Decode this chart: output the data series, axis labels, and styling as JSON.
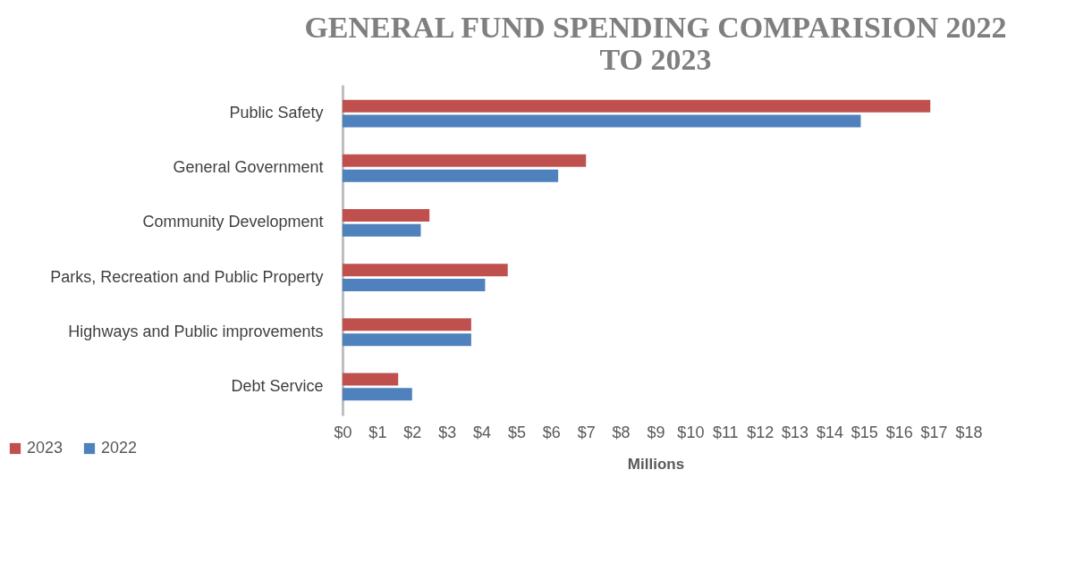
{
  "chart_data": {
    "type": "bar",
    "orientation": "horizontal",
    "title": "GENERAL FUND SPENDING COMPARISION 2022 TO 2023",
    "xlabel": "Millions",
    "categories": [
      "Public Safety",
      "General Government",
      "Community Development",
      "Parks, Recreation and Public Property",
      "Highways and Public improvements",
      "Debt Service"
    ],
    "series": [
      {
        "name": "2023",
        "color": "#c0504d",
        "values": [
          16.9,
          7.0,
          2.5,
          4.75,
          3.7,
          1.6
        ]
      },
      {
        "name": "2022",
        "color": "#4f81bd",
        "values": [
          14.9,
          6.2,
          2.25,
          4.1,
          3.7,
          2.0
        ]
      }
    ],
    "xlim": [
      0,
      18
    ],
    "xticks": [
      {
        "value": 0,
        "label": "$0"
      },
      {
        "value": 1,
        "label": "$1"
      },
      {
        "value": 2,
        "label": "$2"
      },
      {
        "value": 3,
        "label": "$3"
      },
      {
        "value": 4,
        "label": "$4"
      },
      {
        "value": 5,
        "label": "$5"
      },
      {
        "value": 6,
        "label": "$6"
      },
      {
        "value": 7,
        "label": "$7"
      },
      {
        "value": 8,
        "label": "$8"
      },
      {
        "value": 9,
        "label": "$9"
      },
      {
        "value": 10,
        "label": "$10"
      },
      {
        "value": 11,
        "label": "$11"
      },
      {
        "value": 12,
        "label": "$12"
      },
      {
        "value": 13,
        "label": "$13"
      },
      {
        "value": 14,
        "label": "$14"
      },
      {
        "value": 15,
        "label": "$15"
      },
      {
        "value": 16,
        "label": "$16"
      },
      {
        "value": 17,
        "label": "$17"
      },
      {
        "value": 18,
        "label": "$18"
      }
    ],
    "grid": false,
    "legend": "bottom left"
  }
}
